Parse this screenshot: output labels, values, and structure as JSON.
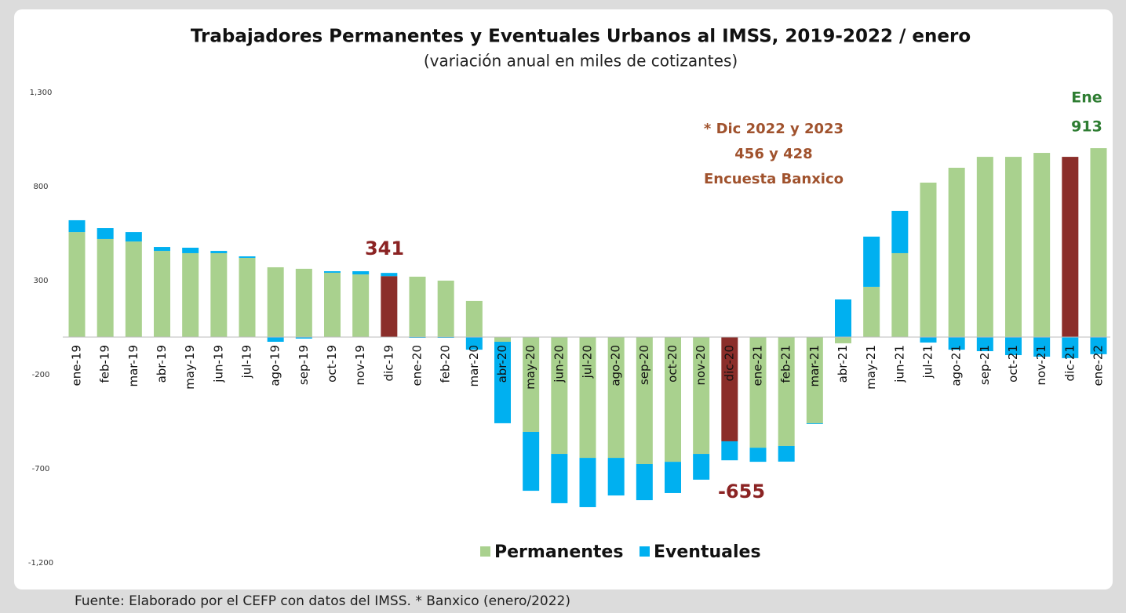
{
  "chart_data": {
    "type": "bar",
    "stacked": true,
    "title": "Trabajadores Permanentes y Eventuales Urbanos al IMSS, 2019-2022 / enero",
    "subtitle": "(variación anual en miles de cotizantes)",
    "source": "Fuente: Elaborado por el CEFP con datos del IMSS. * Banxico (enero/2022)",
    "categories": [
      "ene-19",
      "feb-19",
      "mar-19",
      "abr-19",
      "may-19",
      "jun-19",
      "jul-19",
      "ago-19",
      "sep-19",
      "oct-19",
      "nov-19",
      "dic-19",
      "ene-20",
      "feb-20",
      "mar-20",
      "abr-20",
      "may-20",
      "jun-20",
      "jul-20",
      "ago-20",
      "sep-20",
      "oct-20",
      "nov-20",
      "dic-20",
      "ene-21",
      "feb-21",
      "mar-21",
      "abr-21",
      "may-21",
      "jun-21",
      "jul-21",
      "ago-21",
      "sep-21",
      "oct-21",
      "nov-21",
      "dic-21",
      "ene-22"
    ],
    "series": [
      {
        "name": "Permanentes",
        "color": "#a9d18e",
        "colors": [
          "#a9d18e",
          "#a9d18e",
          "#a9d18e",
          "#a9d18e",
          "#a9d18e",
          "#a9d18e",
          "#a9d18e",
          "#a9d18e",
          "#a9d18e",
          "#a9d18e",
          "#a9d18e",
          "#8b2e2a",
          "#a9d18e",
          "#a9d18e",
          "#a9d18e",
          "#a9d18e",
          "#a9d18e",
          "#a9d18e",
          "#a9d18e",
          "#a9d18e",
          "#a9d18e",
          "#a9d18e",
          "#a9d18e",
          "#8b2e2a",
          "#a9d18e",
          "#a9d18e",
          "#a9d18e",
          "#a9d18e",
          "#a9d18e",
          "#a9d18e",
          "#a9d18e",
          "#a9d18e",
          "#a9d18e",
          "#a9d18e",
          "#a9d18e",
          "#8b2e2a",
          "#a9d18e"
        ],
        "values": [
          558,
          521,
          508,
          458,
          446,
          446,
          421,
          371,
          363,
          342,
          333,
          324,
          321,
          300,
          192,
          -25,
          -504,
          -621,
          -642,
          -642,
          -675,
          -663,
          -621,
          -554,
          -588,
          -579,
          -458,
          -33,
          267,
          446,
          821,
          900,
          958,
          958,
          979,
          958,
          1004
        ]
      },
      {
        "name": "Eventuales",
        "color": "#00b0f0",
        "values": [
          63,
          58,
          50,
          21,
          29,
          12,
          8,
          -25,
          -8,
          8,
          17,
          17,
          -4,
          -4,
          -67,
          -433,
          -313,
          -262,
          -262,
          -200,
          -192,
          -166,
          -137,
          -101,
          -75,
          -83,
          -4,
          200,
          267,
          225,
          -29,
          -67,
          -75,
          -96,
          -104,
          -112,
          -91
        ]
      }
    ],
    "ylim": [
      -1200,
      1300
    ],
    "yticks": [
      {
        "value": -1200,
        "label": "-1,200"
      },
      -700,
      -200,
      300,
      800,
      {
        "value": 1300,
        "label": "1,300"
      }
    ],
    "grid": false,
    "legend": "bottom",
    "annotations": [
      {
        "text": "341",
        "color": "#8b2323"
      },
      {
        "text": "* Dic 2022 y 2023",
        "color": "#a0522d"
      },
      {
        "text": "456 y 428",
        "color": "#a0522d"
      },
      {
        "text": "Encuesta Banxico",
        "color": "#a0522d"
      },
      {
        "text": "Ene",
        "color": "#2e7d32"
      },
      {
        "text": "913",
        "color": "#2e7d32"
      },
      {
        "text": "-655",
        "color": "#8b2323"
      }
    ]
  }
}
